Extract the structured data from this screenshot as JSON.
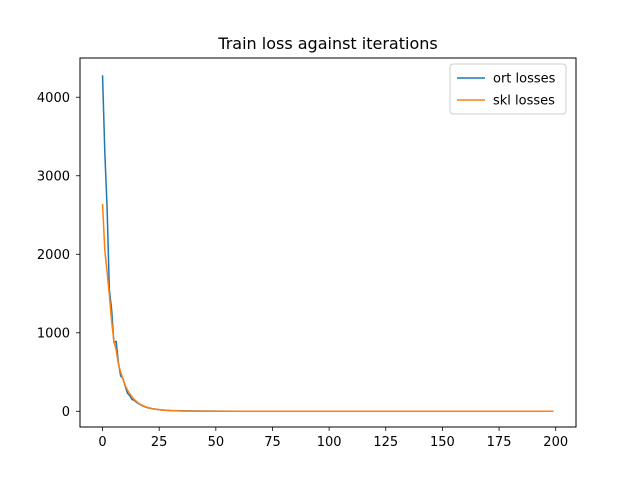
{
  "chart_data": {
    "type": "line",
    "title": "Train loss against iterations",
    "xlabel": "",
    "ylabel": "",
    "xlim": [
      -9.95,
      208.95
    ],
    "ylim": [
      -200,
      4500
    ],
    "xticks": [
      0,
      25,
      50,
      75,
      100,
      125,
      150,
      175,
      200
    ],
    "yticks": [
      0,
      1000,
      2000,
      3000,
      4000
    ],
    "grid": false,
    "legend_position": "top-right",
    "series": [
      {
        "name": "ort losses",
        "color": "#1f77b4",
        "x": [
          0,
          1,
          2,
          3,
          4,
          5,
          6,
          7,
          8,
          9,
          10,
          11,
          12,
          13,
          14,
          15,
          16,
          17,
          18,
          19,
          20,
          22,
          24,
          26,
          28,
          30,
          35,
          40,
          50,
          60,
          75,
          100,
          125,
          150,
          175,
          199
        ],
        "y": [
          4280,
          3300,
          2600,
          1550,
          1300,
          880,
          890,
          620,
          450,
          420,
          320,
          230,
          200,
          150,
          140,
          115,
          95,
          80,
          65,
          55,
          45,
          32,
          24,
          18,
          13,
          10,
          6,
          4,
          2,
          1,
          1,
          0,
          0,
          0,
          0,
          0
        ]
      },
      {
        "name": "skl losses",
        "color": "#ff7f0e",
        "x": [
          0,
          1,
          2,
          3,
          4,
          5,
          6,
          7,
          8,
          9,
          10,
          11,
          12,
          13,
          14,
          15,
          16,
          17,
          18,
          19,
          20,
          22,
          24,
          26,
          28,
          30,
          35,
          40,
          50,
          60,
          75,
          100,
          125,
          150,
          175,
          199
        ],
        "y": [
          2640,
          2050,
          1780,
          1480,
          1150,
          900,
          780,
          600,
          500,
          410,
          330,
          270,
          225,
          185,
          150,
          125,
          100,
          85,
          70,
          58,
          48,
          33,
          23,
          16,
          11,
          8,
          4,
          2,
          1,
          0,
          0,
          0,
          0,
          0,
          0,
          0
        ]
      }
    ]
  }
}
